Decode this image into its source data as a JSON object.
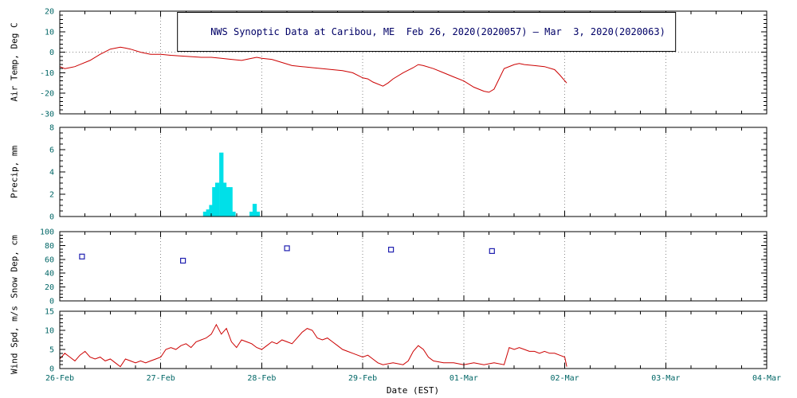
{
  "title": "NWS Synoptic Data at Caribou, ME  Feb 26, 2020(2020057) — Mar  3, 2020(2020063)",
  "xlabel": "Date (EST)",
  "x_tick_labels": [
    "26-Feb",
    "27-Feb",
    "28-Feb",
    "29-Feb",
    "01-Mar",
    "02-Mar",
    "03-Mar",
    "04-Mar"
  ],
  "xlim": [
    0,
    7
  ],
  "colors": {
    "frame": "#000000",
    "grid": "#8a8a8a",
    "tick_text": "#006666",
    "title_text": "#000066",
    "temp_line": "#cc0000",
    "precip_bar": "#00e0e8",
    "snow_marker": "#2020b0",
    "wind_line": "#cc0000"
  },
  "chart_data": [
    {
      "id": "air-temp",
      "type": "line",
      "name": "Air Temperature",
      "ylabel": "Air Temp, Deg C",
      "ylim": [
        -30,
        20
      ],
      "yticks": [
        -30,
        -20,
        -10,
        0,
        10,
        20
      ],
      "yminor": 2,
      "hgrid": [
        0
      ],
      "color": "#cc0000",
      "x": [
        0,
        0.05,
        0.1,
        0.15,
        0.2,
        0.3,
        0.4,
        0.5,
        0.6,
        0.65,
        0.7,
        0.8,
        0.9,
        1.0,
        1.1,
        1.25,
        1.4,
        1.5,
        1.6,
        1.7,
        1.8,
        1.9,
        1.95,
        2.0,
        2.1,
        2.2,
        2.3,
        2.4,
        2.5,
        2.6,
        2.7,
        2.8,
        2.9,
        3.0,
        3.05,
        3.1,
        3.2,
        3.25,
        3.3,
        3.4,
        3.5,
        3.55,
        3.6,
        3.7,
        3.8,
        3.9,
        4.0,
        4.1,
        4.2,
        4.25,
        4.3,
        4.35,
        4.4,
        4.5,
        4.55,
        4.6,
        4.7,
        4.8,
        4.9,
        4.95,
        5.02
      ],
      "y": [
        -7,
        -8,
        -7.5,
        -7,
        -6,
        -4,
        -1,
        1.5,
        2.5,
        2,
        1.5,
        0,
        -1,
        -1,
        -1.5,
        -2,
        -2.5,
        -2.5,
        -3,
        -3.5,
        -4,
        -3,
        -2.5,
        -3,
        -3.5,
        -5,
        -6.5,
        -7,
        -7.5,
        -8,
        -8.5,
        -9,
        -10,
        -12.5,
        -13,
        -14.5,
        -16.5,
        -15,
        -13,
        -10,
        -7.5,
        -6,
        -6.5,
        -8,
        -10,
        -12,
        -14,
        -17,
        -19,
        -19.5,
        -18,
        -13,
        -8,
        -6,
        -5.5,
        -6,
        -6.5,
        -7,
        -8.5,
        -11,
        -15
      ]
    },
    {
      "id": "precip",
      "type": "bar",
      "name": "Precipitation",
      "ylabel": "Precip, mm",
      "ylim": [
        0,
        8
      ],
      "yticks": [
        0,
        2,
        4,
        6,
        8
      ],
      "yminor": 0.5,
      "color": "#00e0e8",
      "x": [
        1.44,
        1.47,
        1.5,
        1.53,
        1.56,
        1.6,
        1.63,
        1.66,
        1.69,
        1.72,
        1.9,
        1.93,
        1.96
      ],
      "y": [
        0.4,
        0.6,
        1.0,
        2.6,
        3.0,
        5.7,
        3.0,
        2.6,
        2.6,
        0.4,
        0.4,
        1.1,
        0.4
      ]
    },
    {
      "id": "snow-depth",
      "type": "scatter",
      "name": "Snow Depth",
      "marker": "open-square",
      "ylabel": "Snow Dep, cm",
      "ylim": [
        0,
        100
      ],
      "yticks": [
        0,
        20,
        40,
        60,
        80,
        100
      ],
      "yminor": 5,
      "color": "#2020b0",
      "x": [
        0.22,
        1.22,
        2.25,
        3.28,
        4.28
      ],
      "y": [
        64,
        58,
        76,
        74,
        72
      ]
    },
    {
      "id": "wind-speed",
      "type": "line",
      "name": "Wind Speed",
      "ylabel": "Wind Spd, m/s",
      "ylim": [
        0,
        15
      ],
      "yticks": [
        0,
        5,
        10,
        15
      ],
      "yminor": 1,
      "color": "#cc0000",
      "x": [
        0,
        0.05,
        0.1,
        0.15,
        0.2,
        0.25,
        0.3,
        0.35,
        0.4,
        0.45,
        0.5,
        0.55,
        0.6,
        0.65,
        0.7,
        0.75,
        0.8,
        0.85,
        0.9,
        0.95,
        1.0,
        1.05,
        1.1,
        1.15,
        1.2,
        1.25,
        1.3,
        1.35,
        1.4,
        1.45,
        1.5,
        1.55,
        1.6,
        1.65,
        1.7,
        1.75,
        1.8,
        1.85,
        1.9,
        1.95,
        2.0,
        2.05,
        2.1,
        2.15,
        2.2,
        2.25,
        2.3,
        2.35,
        2.4,
        2.45,
        2.5,
        2.55,
        2.6,
        2.65,
        2.7,
        2.75,
        2.8,
        2.85,
        2.9,
        2.95,
        3.0,
        3.05,
        3.1,
        3.15,
        3.2,
        3.3,
        3.4,
        3.45,
        3.5,
        3.55,
        3.6,
        3.65,
        3.7,
        3.8,
        3.9,
        4.0,
        4.1,
        4.2,
        4.3,
        4.4,
        4.45,
        4.5,
        4.55,
        4.6,
        4.65,
        4.7,
        4.75,
        4.8,
        4.85,
        4.9,
        4.95,
        5.0,
        5.02
      ],
      "y": [
        2.5,
        4,
        3,
        2,
        3.5,
        4.5,
        3,
        2.5,
        3,
        2,
        2.5,
        1.5,
        0.5,
        2.5,
        2,
        1.5,
        2,
        1.5,
        2,
        2.5,
        3,
        5,
        5.5,
        5,
        6,
        6.5,
        5.5,
        7,
        7.5,
        8,
        9,
        11.5,
        9,
        10.5,
        7,
        5.5,
        7.5,
        7,
        6.5,
        5.5,
        5,
        6,
        7,
        6.5,
        7.5,
        7,
        6.5,
        8,
        9.5,
        10.5,
        10,
        8,
        7.5,
        8,
        7,
        6,
        5,
        4.5,
        4,
        3.5,
        3,
        3.5,
        2.5,
        1.5,
        1,
        1.5,
        1,
        2,
        4.5,
        6,
        5,
        3,
        2,
        1.5,
        1.5,
        1,
        1.5,
        1,
        1.5,
        1,
        5.5,
        5,
        5.5,
        5,
        4.5,
        4.5,
        4,
        4.5,
        4,
        4,
        3.5,
        3,
        0.5
      ]
    }
  ]
}
